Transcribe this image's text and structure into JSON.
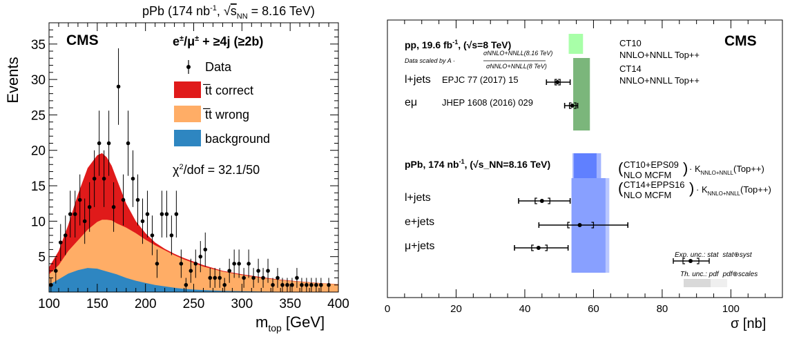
{
  "chart_data": [
    {
      "type": "area",
      "title": "pPb (174 nb⁻¹, √s_NN = 8.16 TeV)",
      "title_parts": {
        "pre": "pPb (174 nb",
        "sup": "-1",
        "mid": ", ",
        "sqrt": "s",
        "sub": "NN",
        "post": " = 8.16 TeV)"
      },
      "experiment": "CMS",
      "channel": {
        "pre": "e",
        "sup1": "±",
        "mid": "/μ",
        "sup2": "±",
        "post": " + ≥4j (≥2b)"
      },
      "chi2": {
        "label": "χ",
        "sup": "2",
        "rest": "/dof = 32.1/50"
      },
      "xlabel": {
        "main": "m",
        "sub": "top",
        "unit": " [GeV]"
      },
      "ylabel": "Events",
      "xlim": [
        100,
        400
      ],
      "ylim": [
        0,
        38
      ],
      "xticks": [
        "100",
        "150",
        "200",
        "250",
        "300",
        "350",
        "400"
      ],
      "yticks": [
        "5",
        "10",
        "15",
        "20",
        "25",
        "30",
        "35"
      ],
      "legend": [
        {
          "label": "Data",
          "kind": "marker"
        },
        {
          "label": "t̅t correct",
          "kind": "box",
          "color": "#e01a1a"
        },
        {
          "label": "t̅t wrong",
          "kind": "box",
          "color": "#ffad66"
        },
        {
          "label": "background",
          "kind": "box",
          "color": "#2e86c1"
        }
      ],
      "colors": {
        "correct": "#e01a1a",
        "wrong": "#ffad66",
        "background": "#2e86c1"
      },
      "x": [
        100,
        110,
        120,
        130,
        140,
        150,
        155,
        160,
        165,
        170,
        180,
        190,
        200,
        210,
        220,
        230,
        240,
        250,
        260,
        280,
        300,
        320,
        340,
        360,
        380,
        400
      ],
      "stack": [
        {
          "name": "background",
          "values": [
            1.0,
            1.8,
            2.6,
            3.1,
            3.4,
            3.3,
            3.1,
            2.9,
            2.7,
            2.5,
            2.0,
            1.6,
            1.3,
            1.0,
            0.8,
            0.6,
            0.45,
            0.35,
            0.28,
            0.18,
            0.12,
            0.08,
            0.05,
            0.04,
            0.03,
            0.02
          ]
        },
        {
          "name": "wrong",
          "values": [
            2.5,
            3.8,
            5.8,
            7.3,
            8.8,
            9.9,
            10.2,
            10.2,
            10.1,
            9.7,
            9.1,
            8.3,
            7.4,
            6.6,
            5.9,
            5.2,
            4.6,
            4.1,
            3.6,
            2.9,
            2.4,
            2.0,
            1.7,
            1.45,
            1.25,
            1.1
          ]
        },
        {
          "name": "correct",
          "values": [
            3.5,
            5.8,
            9.5,
            13.8,
            17.5,
            19.3,
            19.6,
            19.0,
            17.8,
            16.0,
            12.5,
            10.0,
            8.3,
            7.0,
            6.1,
            5.4,
            4.8,
            4.3,
            3.8,
            3.0,
            2.5,
            2.1,
            1.75,
            1.5,
            1.28,
            1.12
          ]
        }
      ],
      "data_points": [
        {
          "x": 102,
          "y": 1,
          "err": 1
        },
        {
          "x": 107,
          "y": 3,
          "err": 1.8
        },
        {
          "x": 112,
          "y": 7,
          "err": 2.6
        },
        {
          "x": 117,
          "y": 8,
          "err": 2.8
        },
        {
          "x": 122,
          "y": 11,
          "err": 3.3
        },
        {
          "x": 127,
          "y": 11,
          "err": 3.3
        },
        {
          "x": 132,
          "y": 13,
          "err": 3.6
        },
        {
          "x": 137,
          "y": 10,
          "err": 3.2
        },
        {
          "x": 142,
          "y": 12,
          "err": 3.5
        },
        {
          "x": 147,
          "y": 16,
          "err": 4
        },
        {
          "x": 152,
          "y": 21,
          "err": 4.6
        },
        {
          "x": 157,
          "y": 16,
          "err": 4
        },
        {
          "x": 162,
          "y": 21,
          "err": 4.6
        },
        {
          "x": 167,
          "y": 12,
          "err": 3.5
        },
        {
          "x": 172,
          "y": 29,
          "err": 5.4
        },
        {
          "x": 177,
          "y": 13,
          "err": 3.6
        },
        {
          "x": 182,
          "y": 21,
          "err": 4.6
        },
        {
          "x": 187,
          "y": 16,
          "err": 4
        },
        {
          "x": 192,
          "y": 13,
          "err": 3.6
        },
        {
          "x": 197,
          "y": 10,
          "err": 3.2
        },
        {
          "x": 202,
          "y": 11,
          "err": 3.3
        },
        {
          "x": 207,
          "y": 8,
          "err": 2.8
        },
        {
          "x": 212,
          "y": 4,
          "err": 2
        },
        {
          "x": 217,
          "y": 11,
          "err": 3.3
        },
        {
          "x": 222,
          "y": 11,
          "err": 3.3
        },
        {
          "x": 227,
          "y": 8,
          "err": 2.8
        },
        {
          "x": 232,
          "y": 11,
          "err": 3.3
        },
        {
          "x": 237,
          "y": 4,
          "err": 2
        },
        {
          "x": 242,
          "y": 1,
          "err": 1
        },
        {
          "x": 247,
          "y": 3,
          "err": 1.7
        },
        {
          "x": 252,
          "y": 4,
          "err": 2
        },
        {
          "x": 257,
          "y": 5,
          "err": 2.2
        },
        {
          "x": 262,
          "y": 6,
          "err": 2.4
        },
        {
          "x": 267,
          "y": 2,
          "err": 1.4
        },
        {
          "x": 272,
          "y": 2,
          "err": 1.4
        },
        {
          "x": 277,
          "y": 2,
          "err": 1.4
        },
        {
          "x": 282,
          "y": 1,
          "err": 1
        },
        {
          "x": 287,
          "y": 3,
          "err": 1.7
        },
        {
          "x": 292,
          "y": 4,
          "err": 2
        },
        {
          "x": 297,
          "y": 4,
          "err": 2
        },
        {
          "x": 302,
          "y": 2,
          "err": 1.4
        },
        {
          "x": 307,
          "y": 4,
          "err": 2
        },
        {
          "x": 312,
          "y": 2,
          "err": 1.4
        },
        {
          "x": 317,
          "y": 3,
          "err": 1.7
        },
        {
          "x": 322,
          "y": 2,
          "err": 1.4
        },
        {
          "x": 327,
          "y": 3,
          "err": 1.7
        },
        {
          "x": 332,
          "y": 1,
          "err": 1
        },
        {
          "x": 337,
          "y": 2,
          "err": 1.4
        },
        {
          "x": 342,
          "y": 1,
          "err": 1
        },
        {
          "x": 347,
          "y": 1,
          "err": 1
        },
        {
          "x": 352,
          "y": 1,
          "err": 1
        },
        {
          "x": 357,
          "y": 2,
          "err": 1.4
        },
        {
          "x": 362,
          "y": 1,
          "err": 1
        },
        {
          "x": 367,
          "y": 1,
          "err": 1
        },
        {
          "x": 372,
          "y": 1,
          "err": 1
        },
        {
          "x": 377,
          "y": 1,
          "err": 1
        },
        {
          "x": 382,
          "y": 1,
          "err": 1
        },
        {
          "x": 390,
          "y": 1,
          "err": 1
        }
      ]
    },
    {
      "type": "scatter",
      "experiment": "CMS",
      "xlabel": "σ [nb]",
      "xlim": [
        0,
        115
      ],
      "xticks": [
        "0",
        "20",
        "40",
        "60",
        "80",
        "100"
      ],
      "pp_header": {
        "text": "pp, 19.6 fb",
        "sup": "-1",
        "rest": ", (√s=8 TeV)"
      },
      "pp_scaling": {
        "lead": "Data scaled by A ·",
        "num": "σNNLO+NNLL(8.16 TeV)",
        "den": "σNNLO+NNLL(8 TeV)"
      },
      "pp_measurements": [
        {
          "label": "l+jets",
          "ref": "EPJC 77 (2017) 15",
          "value": 49.5,
          "stat": [
            48.8,
            50.3
          ],
          "syst": [
            46.3,
            53.2
          ]
        },
        {
          "label": "eμ",
          "ref": "JHEP 1608 (2016) 029",
          "value": 53.8,
          "stat": [
            53.0,
            54.9
          ],
          "syst": [
            51.6,
            55.4
          ]
        }
      ],
      "pp_theory": [
        {
          "label1": "CT10",
          "label2": "NNLO+NNLL Top++",
          "pdf": [
            52.9,
            56.9
          ],
          "total": [
            52.7,
            57.0
          ],
          "color": "#99ff99"
        },
        {
          "label1": "CT14",
          "label2": "NNLO+NNLL Top++",
          "pdf": [
            54.1,
            58.9
          ],
          "total": [
            54.1,
            59.0
          ],
          "color": "#66aa66"
        }
      ],
      "ppb_header": {
        "text": "pPb, 174 nb",
        "sup": "-1",
        "rest": ", (√s_NN=8.16 TeV)"
      },
      "ppb_measurements": [
        {
          "label": "l+jets",
          "value": 45,
          "stat": [
            43,
            47.3
          ],
          "syst": [
            38.2,
            53.2
          ]
        },
        {
          "label": "e+jets",
          "value": 56,
          "stat": [
            52.5,
            60
          ],
          "syst": [
            44.1,
            70.0
          ]
        },
        {
          "label": "μ+jets",
          "value": 44,
          "stat": [
            42,
            46.5
          ],
          "syst": [
            37.0,
            52.6
          ]
        }
      ],
      "ppb_theory": [
        {
          "label1": "CT10+EPS09",
          "label2": "NLO MCFM",
          "k": "· K",
          "ksub": "NNLO+NNLL",
          "kpost": "(Top++)",
          "pdf": [
            54.3,
            60.9
          ],
          "total": [
            53.9,
            62.2
          ],
          "color": "#5577ff"
        },
        {
          "label1": "CT14+EPPS16",
          "label2": "NLO MCFM",
          "k": "· K",
          "ksub": "NNLO+NNLL",
          "kpost": "(Top++)",
          "pdf": [
            53.6,
            63.5
          ],
          "total": [
            53.6,
            64.6
          ],
          "color": "#7f99ff"
        }
      ],
      "legend_exp": {
        "lead": "Exp. unc.: stat",
        "second": "stat⊕syst"
      },
      "legend_th": {
        "lead": "Th. unc.: pdf",
        "second": "pdf⊕scales"
      }
    }
  ]
}
